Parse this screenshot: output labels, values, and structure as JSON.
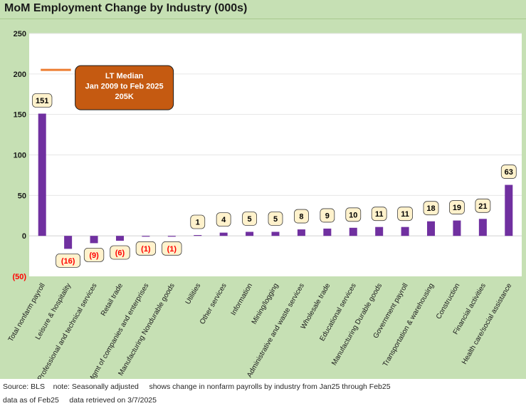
{
  "title": "MoM Employment Change by Industry (000s)",
  "chart_data": {
    "type": "bar",
    "title": "MoM Employment Change by Industry (000s)",
    "categories": [
      "Total nonfarm payroll",
      "Leisure & hospitality",
      "Professional and technical services",
      "Retail trade",
      "Mgmt of companies and enterprises",
      "Manufacturing Nondurable goods",
      "Utilities",
      "Other services",
      "Information",
      "Mining/logging",
      "Administrative and waste services",
      "Wholesale trade",
      "Educational services",
      "Manufacturing Durable goods",
      "Government payroll",
      "Transportation & warehousing",
      "Construction",
      "Financial activities",
      "Health care/social assistance"
    ],
    "values": [
      151,
      -16,
      -9,
      -6,
      -1,
      -1,
      1,
      4,
      5,
      5,
      8,
      9,
      10,
      11,
      11,
      18,
      19,
      21,
      63
    ],
    "data_labels": [
      "151",
      "(16)",
      "(9)",
      "(6)",
      "(1)",
      "(1)",
      "1",
      "4",
      "5",
      "5",
      "8",
      "9",
      "10",
      "11",
      "11",
      "18",
      "19",
      "21",
      "63"
    ],
    "ylim": [
      -50,
      250
    ],
    "yticks": [
      -50,
      0,
      50,
      100,
      150,
      200,
      250
    ],
    "ytick_labels": [
      "(50)",
      "0",
      "50",
      "100",
      "150",
      "200",
      "250"
    ],
    "grid": true,
    "median_value": 205,
    "annotation": {
      "lines": [
        "LT Median",
        "Jan 2009 to Feb 2025",
        "205K"
      ]
    },
    "colors": {
      "bar": "#7030a0",
      "background": "#c6e0b4",
      "plot_area": "#ffffff",
      "median_line": "#ed7d31",
      "annotation_box": "#c55a11",
      "label_box": "#fff2cc",
      "negative_label": "#ff0000"
    }
  },
  "footer": {
    "line1": "Source: BLS    note: Seasonally adjusted     shows change in nonfarm payrolls by industry from Jan25 through Feb25",
    "line2": "data as of Feb25     data retrieved on 3/7/2025"
  }
}
